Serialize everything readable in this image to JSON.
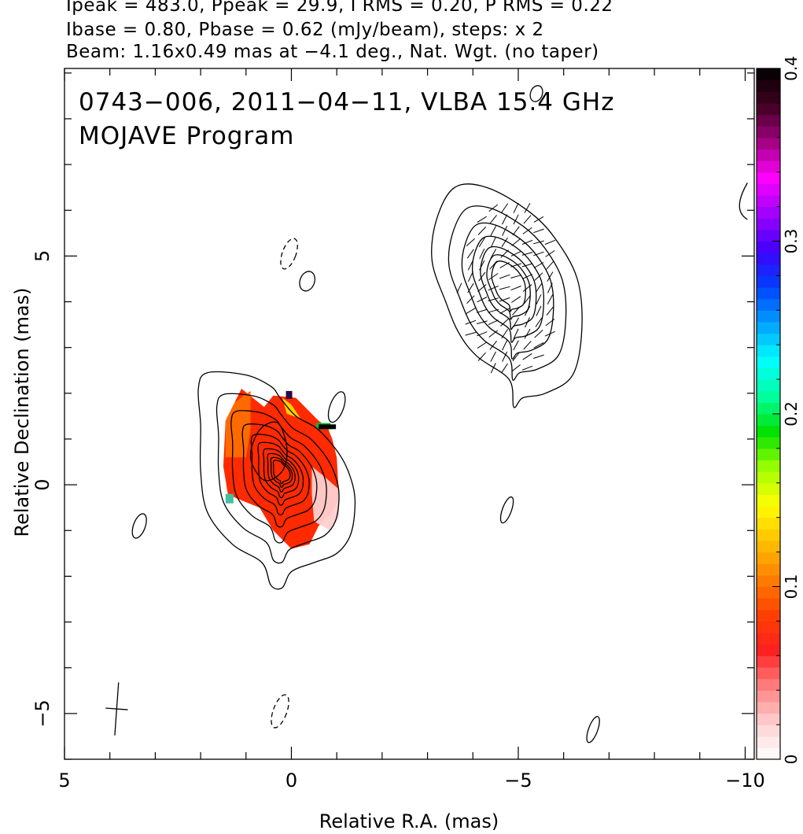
{
  "header": {
    "line1": "Ipeak = 483.0, Ppeak = 29.9, I RMS = 0.20, P RMS = 0.22",
    "line2": "Ibase = 0.80, Pbase = 0.62 (mJy/beam), steps: x 2",
    "line3": "Beam: 1.16x0.49 mas at −4.1 deg., Nat. Wgt. (no taper)"
  },
  "chart_data": {
    "type": "heatmap",
    "title": "0743−006, 2011−04−11, VLBA 15.4 GHz",
    "subtitle": "MOJAVE Program",
    "xlabel": "Relative R.A. (mas)",
    "ylabel": "Relative Declination (mas)",
    "xlim": [
      5,
      -10.2
    ],
    "ylim": [
      -6,
      9.1
    ],
    "x_ticks": [
      5,
      0,
      -5,
      -10
    ],
    "y_ticks": [
      5,
      0,
      -5
    ],
    "x_tick_labels": [
      "5",
      "0",
      "−5",
      "−10"
    ],
    "y_tick_labels": [
      "5",
      "0",
      "−5"
    ],
    "colorbar": {
      "range": [
        0,
        0.4
      ],
      "ticks": [
        0,
        0.1,
        0.2,
        0.3,
        0.4
      ],
      "tick_labels": [
        "0",
        "0.1",
        "0.2",
        "0.3",
        "0.4"
      ],
      "colors": [
        "#ffffff",
        "#ffd0d0",
        "#ff8080",
        "#ff2020",
        "#ff4000",
        "#ff8000",
        "#ffc000",
        "#ffff00",
        "#a0ff00",
        "#00e000",
        "#00ffa0",
        "#00ffff",
        "#00a0ff",
        "#0040ff",
        "#4000ff",
        "#a000ff",
        "#ff00ff",
        "#a00080",
        "#400020",
        "#000000"
      ]
    },
    "core_contours": {
      "center": [
        0.2,
        0.3
      ],
      "levels": 10,
      "outer_points": [
        [
          1.85,
          2.45
        ],
        [
          1.0,
          2.4
        ],
        [
          0.45,
          2.15
        ],
        [
          0.25,
          1.9
        ],
        [
          -0.1,
          1.5
        ],
        [
          -0.6,
          1.2
        ],
        [
          -1.1,
          0.6
        ],
        [
          -1.35,
          0.0
        ],
        [
          -1.4,
          -0.5
        ],
        [
          -1.3,
          -1.1
        ],
        [
          -1.0,
          -1.5
        ],
        [
          -0.5,
          -1.7
        ],
        [
          0.0,
          -1.9
        ],
        [
          0.2,
          -2.25
        ],
        [
          0.45,
          -2.2
        ],
        [
          0.65,
          -1.7
        ],
        [
          1.3,
          -1.3
        ],
        [
          1.85,
          -0.6
        ],
        [
          2.0,
          0.3
        ],
        [
          2.0,
          1.3
        ],
        [
          2.05,
          2.1
        ]
      ]
    },
    "jet_contours": {
      "center": [
        -4.8,
        4.4
      ],
      "levels": 7,
      "outer_points": [
        [
          -3.2,
          5.8
        ],
        [
          -3.6,
          6.5
        ],
        [
          -4.3,
          6.5
        ],
        [
          -5.2,
          6.0
        ],
        [
          -5.8,
          5.4
        ],
        [
          -6.3,
          4.5
        ],
        [
          -6.4,
          3.4
        ],
        [
          -6.2,
          2.4
        ],
        [
          -5.6,
          2.0
        ],
        [
          -5.1,
          1.9
        ],
        [
          -4.9,
          1.7
        ],
        [
          -4.8,
          2.3
        ],
        [
          -4.1,
          2.8
        ],
        [
          -3.7,
          3.3
        ],
        [
          -3.4,
          4.0
        ],
        [
          -3.1,
          4.9
        ]
      ]
    },
    "dashed_contours": [
      {
        "x": 0.05,
        "y": 5.05,
        "rx": 0.15,
        "ry": 0.35
      },
      {
        "x": 0.25,
        "y": -4.95,
        "rx": 0.15,
        "ry": 0.38
      }
    ],
    "small_contours": [
      {
        "x": -0.35,
        "y": 4.45,
        "rx": 0.16,
        "ry": 0.22
      },
      {
        "x": -1.0,
        "y": 1.7,
        "rx": 0.15,
        "ry": 0.35
      },
      {
        "x": 3.35,
        "y": -0.9,
        "rx": 0.13,
        "ry": 0.28
      },
      {
        "x": -4.75,
        "y": -0.55,
        "rx": 0.1,
        "ry": 0.3
      },
      {
        "x": -6.65,
        "y": -5.35,
        "rx": 0.1,
        "ry": 0.3
      },
      {
        "x": -5.4,
        "y": 8.55,
        "rx": 0.13,
        "ry": 0.18
      }
    ],
    "beam": {
      "x": 3.85,
      "y": -4.9,
      "major_mas": 1.16,
      "minor_mas": 0.49,
      "pa_deg": -4.1
    }
  }
}
